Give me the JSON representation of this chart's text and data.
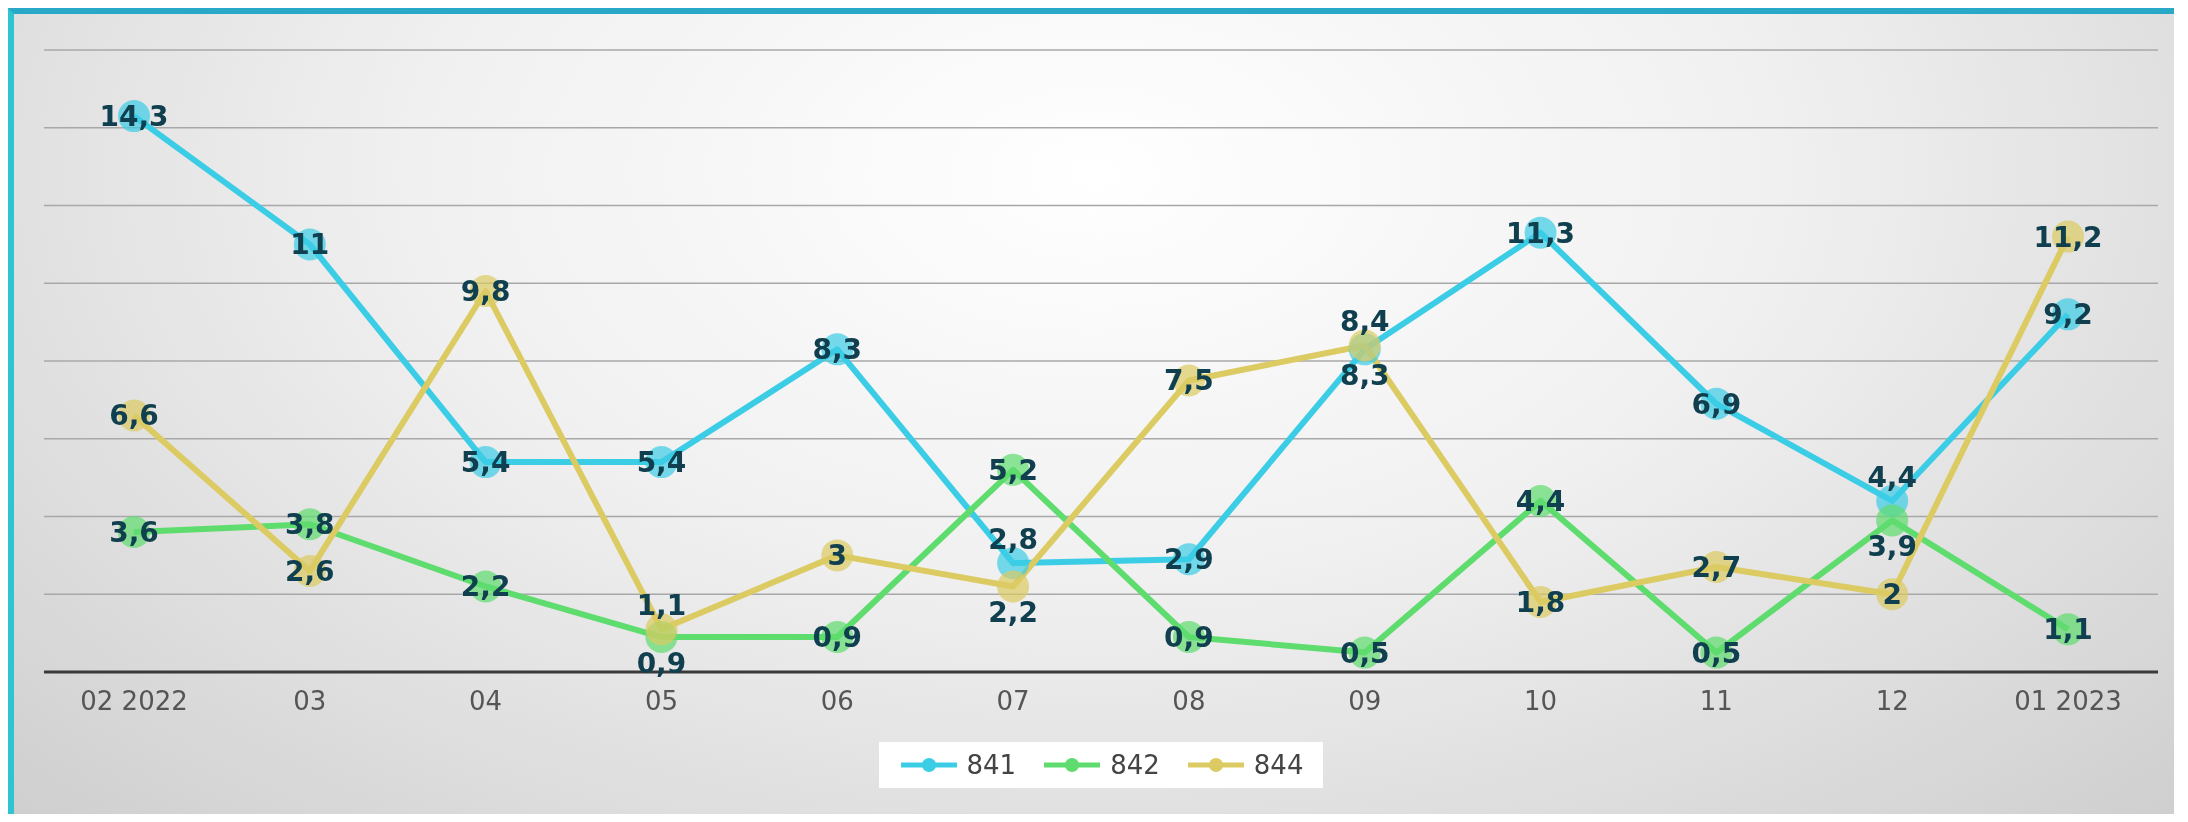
{
  "chart_data": {
    "type": "line",
    "categories": [
      "02 2022",
      "03",
      "04",
      "05",
      "06",
      "07",
      "08",
      "09",
      "10",
      "11",
      "12",
      "01 2023"
    ],
    "series": [
      {
        "name": "841",
        "color": "#3ccde6",
        "values": [
          14.3,
          11,
          5.4,
          5.4,
          8.3,
          2.8,
          2.9,
          8.3,
          11.3,
          6.9,
          4.4,
          9.2
        ],
        "value_labels": [
          "14,3",
          "11",
          "5,4",
          "5,4",
          "8,3",
          "2,8",
          "2,9",
          "8,3",
          "11,3",
          "6,9",
          "4,4",
          "9,2"
        ]
      },
      {
        "name": "842",
        "color": "#5edc6e",
        "values": [
          3.6,
          3.8,
          2.2,
          0.9,
          0.9,
          5.2,
          0.9,
          0.5,
          4.4,
          0.5,
          3.9,
          1.1
        ],
        "value_labels": [
          "3,6",
          "3,8",
          "2,2",
          "0,9",
          "0,9",
          "5,2",
          "0,9",
          "0,5",
          "4,4",
          "0,5",
          "3,9",
          "1,1"
        ]
      },
      {
        "name": "844",
        "color": "#dccb62",
        "values": [
          6.6,
          2.6,
          9.8,
          1.1,
          3,
          2.2,
          7.5,
          8.4,
          1.8,
          2.7,
          2,
          11.2
        ],
        "value_labels": [
          "6,6",
          "2,6",
          "9,8",
          "1,1",
          "3",
          "2,2",
          "7,5",
          "8,4",
          "1,8",
          "2,7",
          "2",
          "11,2"
        ]
      }
    ],
    "ylim": [
      0,
      16
    ],
    "yticks": [
      {
        "value": 0,
        "label": null
      },
      {
        "value": 2,
        "label": null
      },
      {
        "value": 4,
        "label": null
      },
      {
        "value": 6,
        "label": null
      },
      {
        "value": 8,
        "label": null
      },
      {
        "value": 10,
        "label": null
      },
      {
        "value": 12,
        "label": null
      },
      {
        "value": 14,
        "label": null
      },
      {
        "value": 16,
        "label": null
      }
    ],
    "tick_labels": "x",
    "grid": "y",
    "legend": "bottom",
    "marker": "circle",
    "line_style": "solid"
  }
}
